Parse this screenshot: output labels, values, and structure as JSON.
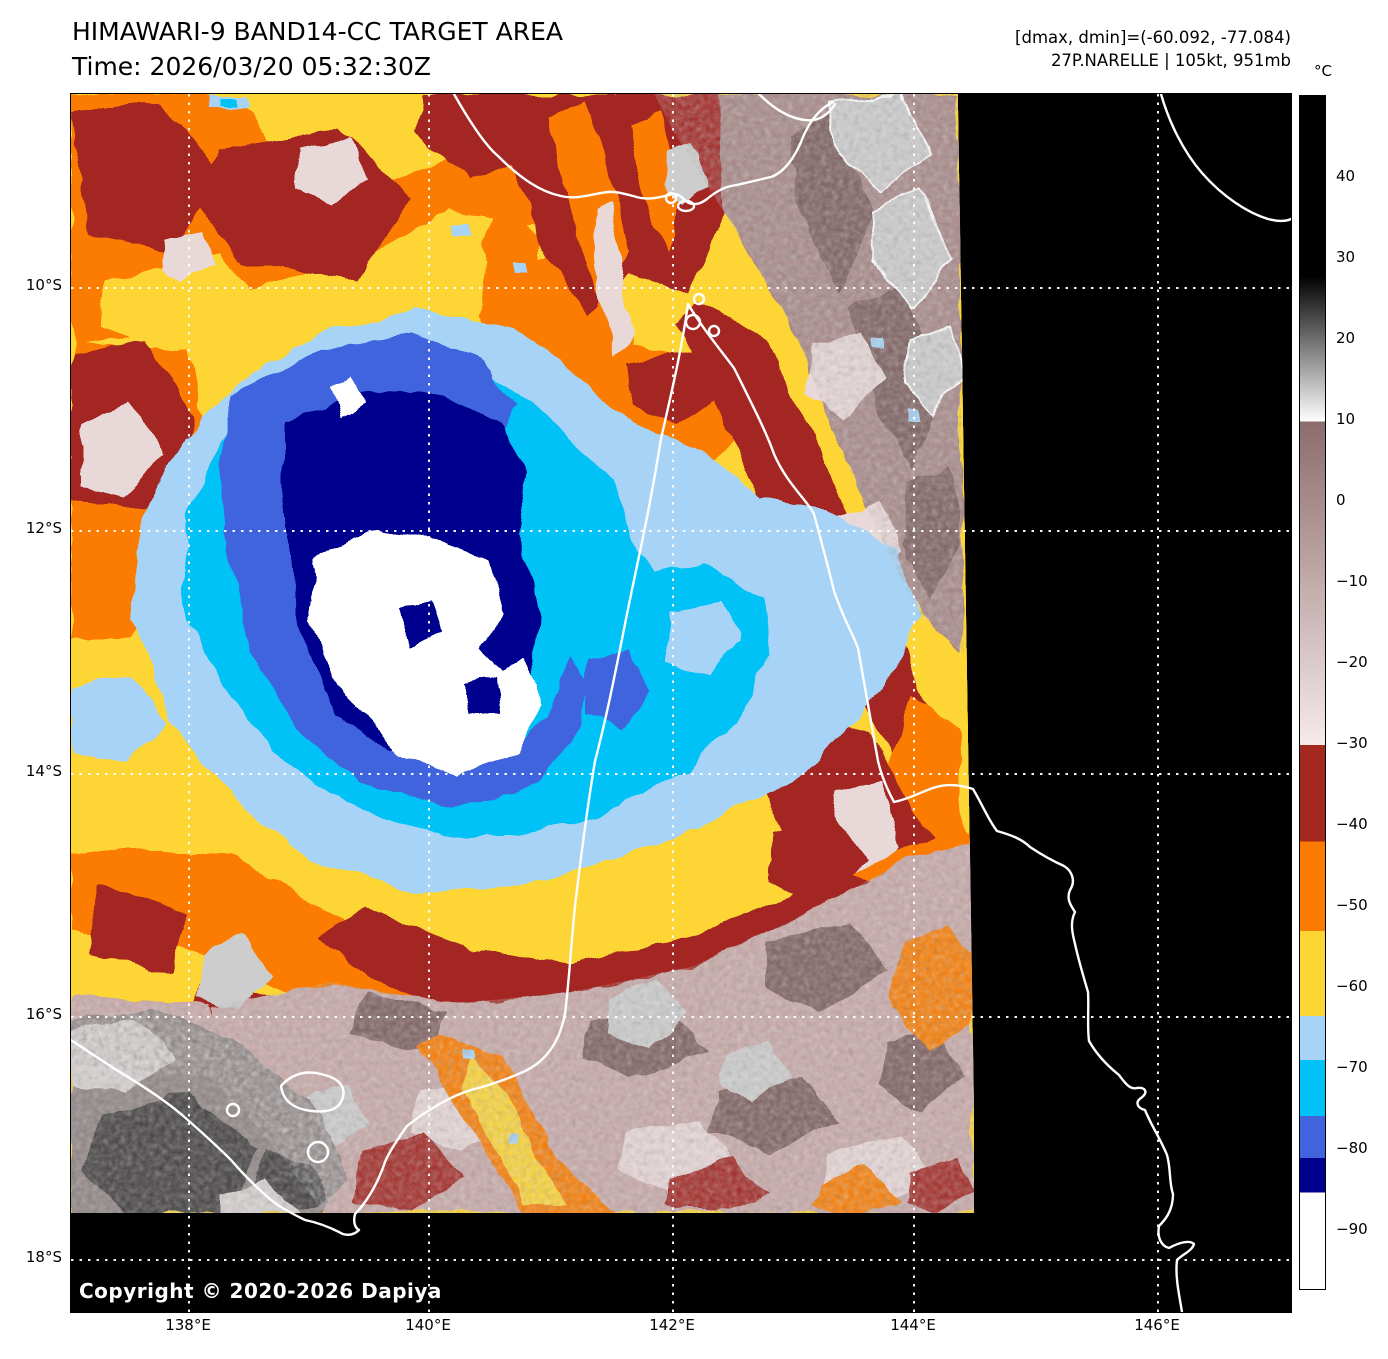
{
  "header": {
    "title": "HIMAWARI-9 BAND14-CC TARGET AREA",
    "time_label": "Time: 2026/03/20 05:32:30Z",
    "dmax_dmin_label": "[dmax, dmin]=(-60.092, -77.084)",
    "storm_label": "27P.NARELLE | 105kt, 951mb"
  },
  "plot": {
    "copyright": "Copyright © 2020-2026 Dapiya"
  },
  "axes": {
    "lat_ticks": [
      "10°S",
      "12°S",
      "14°S",
      "16°S",
      "18°S"
    ],
    "lon_ticks": [
      "138°E",
      "140°E",
      "142°E",
      "144°E",
      "146°E"
    ]
  },
  "colorbar": {
    "unit": "°C",
    "ticks": [
      "40",
      "30",
      "20",
      "10",
      "0",
      "−10",
      "−20",
      "−30",
      "−40",
      "−50",
      "−60",
      "−70",
      "−80",
      "−90"
    ],
    "segments": [
      {
        "from_color": "#000000",
        "to_color": "#000000",
        "from_pct": 0,
        "to_pct": 15.1,
        "approx_temp_c": "+50 to +28"
      },
      {
        "from_color": "#000000",
        "to_color": "#ffffff",
        "from_pct": 15.1,
        "to_pct": 27.3,
        "approx_temp_c": "+28 to +10"
      },
      {
        "from_color": "#8d6c6c",
        "to_color": "#f6eaea",
        "from_pct": 27.3,
        "to_pct": 54.4,
        "approx_temp_c": "+10 to −30"
      },
      {
        "from_color": "#a32820",
        "to_color": "#a32820",
        "from_pct": 54.4,
        "to_pct": 62.5,
        "approx_temp_c": "−30 to −42"
      },
      {
        "from_color": "#fb7b00",
        "to_color": "#fb7b00",
        "from_pct": 62.5,
        "to_pct": 70.0,
        "approx_temp_c": "−42 to −53"
      },
      {
        "from_color": "#fdd535",
        "to_color": "#fdd535",
        "from_pct": 70.0,
        "to_pct": 77.1,
        "approx_temp_c": "−53 to −63"
      },
      {
        "from_color": "#a6d3f6",
        "to_color": "#a6d3f6",
        "from_pct": 77.1,
        "to_pct": 80.8,
        "approx_temp_c": "−63 to −69"
      },
      {
        "from_color": "#00c2f6",
        "to_color": "#00c2f6",
        "from_pct": 80.8,
        "to_pct": 85.5,
        "approx_temp_c": "−69 to −76"
      },
      {
        "from_color": "#4164de",
        "to_color": "#4164de",
        "from_pct": 85.5,
        "to_pct": 89.0,
        "approx_temp_c": "−76 to −81"
      },
      {
        "from_color": "#00008f",
        "to_color": "#00008f",
        "from_pct": 89.0,
        "to_pct": 91.9,
        "approx_temp_c": "−81 to −85"
      },
      {
        "from_color": "#ffffff",
        "to_color": "#ffffff",
        "from_pct": 91.9,
        "to_pct": 100,
        "approx_temp_c": "below −85"
      }
    ]
  },
  "palette": {
    "yellow": "#fdd535",
    "orange": "#fb7b00",
    "dark_red": "#a32820",
    "light_blue": "#a6d3f6",
    "cyan": "#00c2f6",
    "royal_blue": "#4164de",
    "navy": "#00008f",
    "cold_white": "#ffffff",
    "mauve": "#a98888",
    "mauve_dark": "#7e5e5e",
    "pale_pink": "#e9d8d8",
    "pink_land": "#caa9a9",
    "gray_cloud": "#cdcdcd",
    "gray_light": "#d9d2d2",
    "gray_mid": "#8f8383",
    "gray_dark": "#413c3c",
    "background": "#000000",
    "coastline": "#ffffff",
    "grid": "#ffffff"
  }
}
